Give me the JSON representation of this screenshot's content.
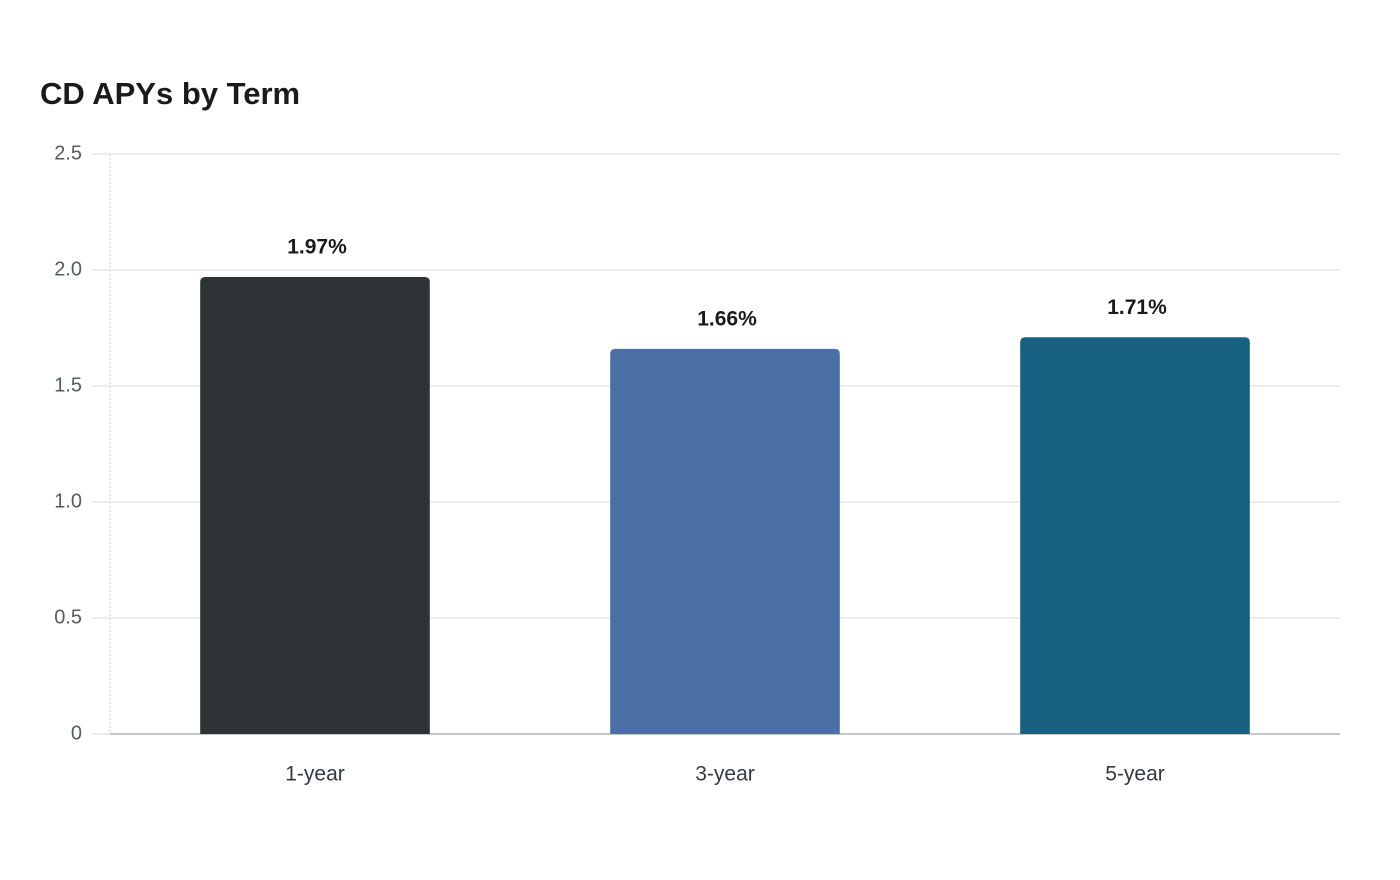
{
  "chart_data": {
    "type": "bar",
    "title": "CD APYs by Term",
    "categories": [
      "1-year",
      "3-year",
      "5-year"
    ],
    "values": [
      1.97,
      1.66,
      1.71
    ],
    "value_labels": [
      "1.97%",
      "1.66%",
      "1.71%"
    ],
    "colors": [
      "#2e3436",
      "#4a6fa5",
      "#17607f"
    ],
    "ylim": [
      0,
      2.5
    ],
    "yticks": [
      0,
      0.5,
      {
        "value": 1,
        "label": "1.0"
      },
      1.5,
      {
        "value": 2,
        "label": "2.0"
      },
      2.5
    ],
    "grid": true
  }
}
